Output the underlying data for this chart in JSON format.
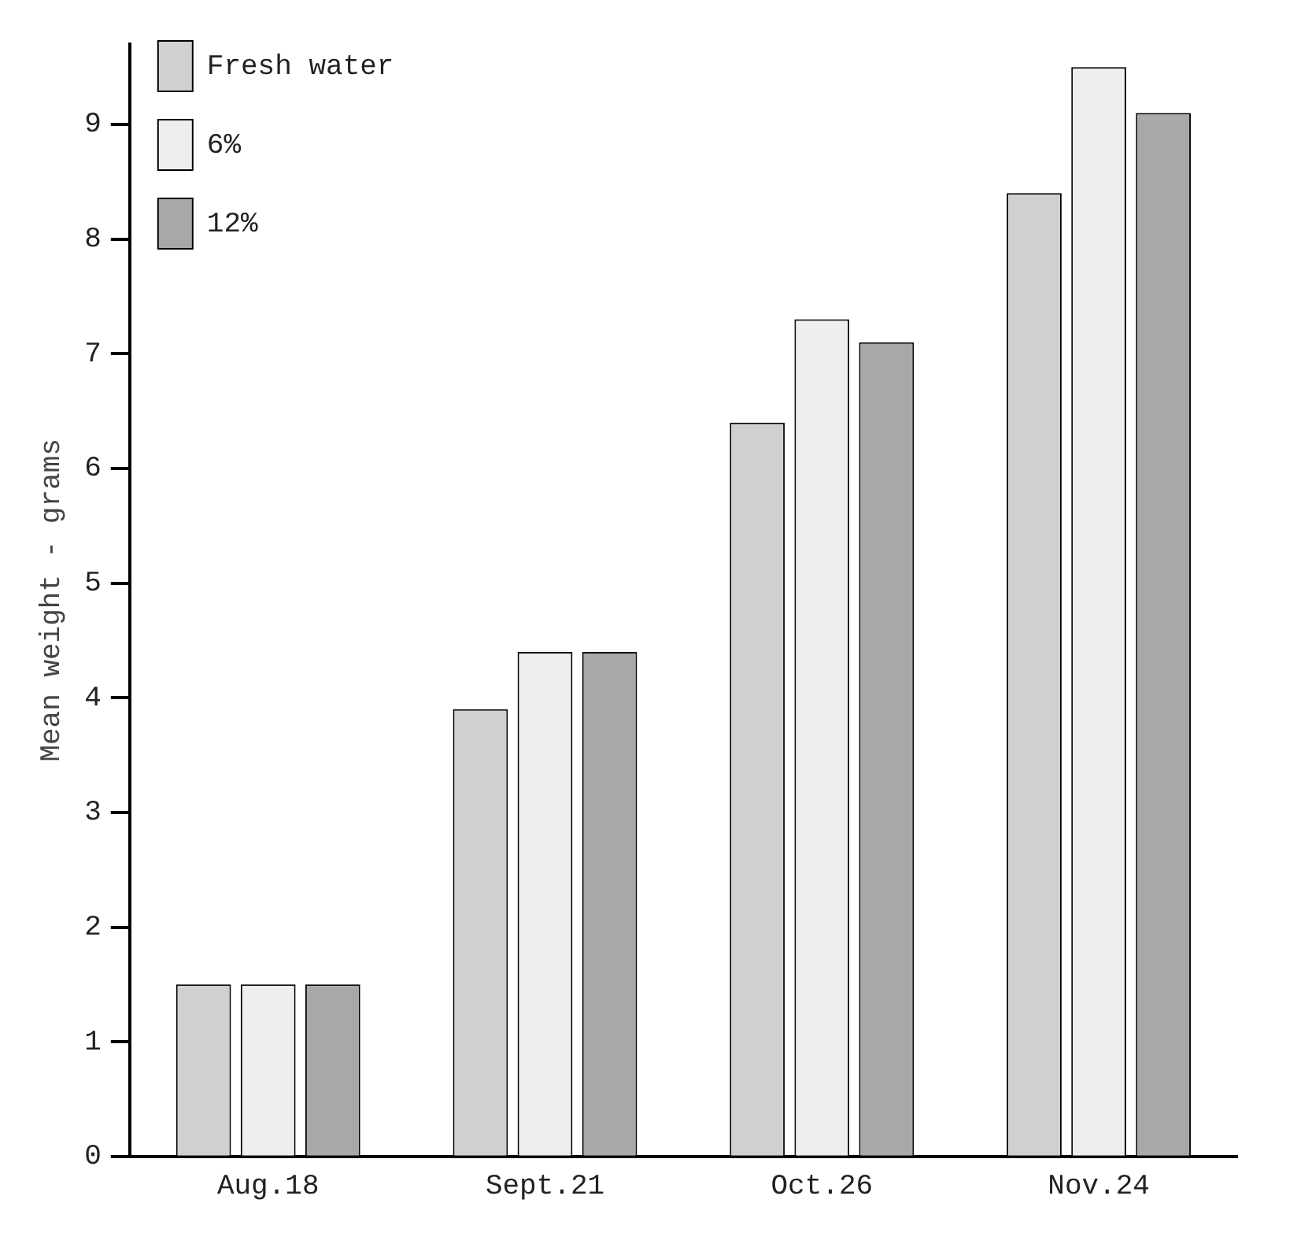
{
  "chart_data": {
    "type": "bar",
    "ylabel": "Mean weight - grams",
    "categories": [
      "Aug.18",
      "Sept.21",
      "Oct.26",
      "Nov.24"
    ],
    "series": [
      {
        "name": "Fresh water",
        "color": "#d0d0d0",
        "values": [
          1.5,
          3.9,
          6.4,
          8.4
        ]
      },
      {
        "name": "6%",
        "color": "#eeeeee",
        "values": [
          1.5,
          4.4,
          7.3,
          9.5
        ]
      },
      {
        "name": "12%",
        "color": "#a8a8a8",
        "values": [
          1.5,
          4.4,
          7.1,
          9.1
        ]
      }
    ],
    "ylim": [
      0,
      9.7
    ],
    "yticks": [
      0,
      1,
      2,
      3,
      4,
      5,
      6,
      7,
      8,
      9
    ],
    "grid": false,
    "legend": "top left"
  }
}
